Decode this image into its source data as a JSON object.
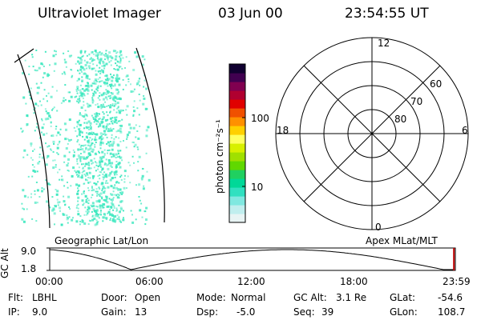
{
  "header": {
    "title": "Ultraviolet Imager",
    "date": "03 Jun 00",
    "time": "23:54:55 UT"
  },
  "colorbar": {
    "unit_label": "photon cm⁻²s⁻¹",
    "tick_labels": [
      "100",
      "10"
    ],
    "tick_values": [
      100,
      10
    ],
    "colors": [
      "#e8f4f4",
      "#c0eeee",
      "#80e8e0",
      "#30e0c0",
      "#00d898",
      "#20d060",
      "#60d800",
      "#a0e000",
      "#d8f000",
      "#ffff60",
      "#ffd000",
      "#ff9000",
      "#f05000",
      "#e00000",
      "#b00030",
      "#800050",
      "#400050",
      "#100030"
    ]
  },
  "image_panel": {
    "label": "Geographic Lat/Lon",
    "pixel_color": "#40e8c0"
  },
  "polar_plot": {
    "label": "Apex MLat/MLT",
    "mlt_labels": {
      "top": "12",
      "left": "18",
      "right": "6",
      "bottom": "0"
    },
    "lat_labels": [
      {
        "text": "60",
        "lat": 60
      },
      {
        "text": "70",
        "lat": 70
      },
      {
        "text": "80",
        "lat": 80
      }
    ]
  },
  "altitude_plot": {
    "axis_title": "GC Alt",
    "y_ticks": [
      "9.0",
      "1.8"
    ],
    "y_range": [
      1.8,
      9.0
    ],
    "x_ticks": [
      "00:00",
      "06:00",
      "12:00",
      "18:00",
      "23:59"
    ],
    "current_time_hours": 23.915,
    "marker_color": "#c00000"
  },
  "info": {
    "flt_label": "Flt:",
    "flt_value": "LBHL",
    "ip_label": "IP:",
    "ip_value": "9.0",
    "door_label": "Door:",
    "door_value": "Open",
    "gain_label": "Gain:",
    "gain_value": "13",
    "mode_label": "Mode:",
    "mode_value": "Normal",
    "dsp_label": "Dsp:",
    "dsp_value": "-5.0",
    "gcalt_label": "GC Alt:",
    "gcalt_value": "3.1 Re",
    "seq_label": "Seq:",
    "seq_value": "39",
    "glat_label": "GLat:",
    "glat_value": "-54.6",
    "glon_label": "GLon:",
    "glon_value": "108.7"
  }
}
